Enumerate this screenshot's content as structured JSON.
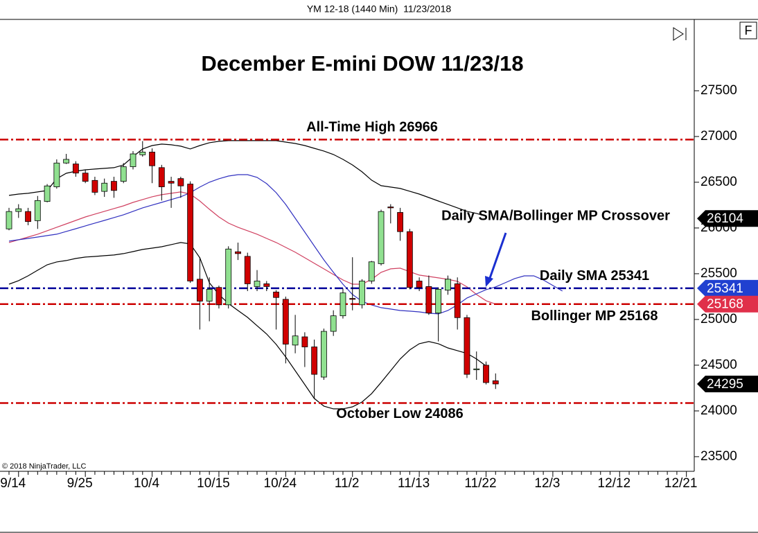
{
  "chart_data": {
    "type": "candlestick",
    "header": "YM 12-18 (1440 Min)  11/23/2018",
    "title": "December E-mini DOW 11/23/18",
    "copyright": "© 2018 NinjaTrader, LLC",
    "button": "F",
    "categories": [
      null,
      "9/14",
      null,
      null,
      null,
      null,
      null,
      null,
      "9/25",
      null,
      null,
      null,
      null,
      null,
      null,
      "10/4",
      null,
      null,
      null,
      null,
      null,
      null,
      "10/15",
      null,
      null,
      null,
      null,
      null,
      null,
      "10/24",
      null,
      null,
      null,
      null,
      null,
      null,
      "11/2",
      null,
      null,
      null,
      null,
      null,
      null,
      "11/13",
      null,
      null,
      null,
      null,
      null,
      null,
      "11/22",
      null,
      null,
      null,
      null,
      null,
      null,
      "12/3",
      null,
      null,
      null,
      null,
      null,
      null,
      "12/12",
      null,
      null,
      null,
      null,
      null,
      null,
      "12/21"
    ],
    "open": [
      25990,
      26180,
      26180,
      26080,
      26290,
      26450,
      26710,
      26700,
      26600,
      26520,
      26400,
      26510,
      26510,
      26670,
      26800,
      26830,
      26660,
      26510,
      26540,
      26480,
      25440,
      25200,
      25350,
      25160,
      25740,
      25690,
      25360,
      25390,
      25300,
      25220,
      24720,
      24810,
      24700,
      24370,
      24870,
      25040,
      25230,
      25160,
      25420,
      25610,
      26230,
      26170,
      25960,
      25420,
      25360,
      25070,
      25320,
      25390,
      25020,
      24450,
      24500,
      24330,
      null,
      null,
      null,
      null,
      null,
      null,
      null,
      null,
      null,
      null,
      null,
      null,
      null,
      null,
      null,
      null,
      null,
      null,
      null,
      null
    ],
    "high": [
      26220,
      26260,
      26220,
      26350,
      26480,
      26750,
      26810,
      26730,
      26640,
      26560,
      26540,
      26560,
      26710,
      26840,
      26950,
      26870,
      26690,
      26560,
      26560,
      26510,
      25680,
      25460,
      25370,
      25800,
      25840,
      25730,
      25540,
      25420,
      25320,
      25250,
      25050,
      24860,
      24780,
      24900,
      25100,
      25340,
      25680,
      25440,
      25640,
      26200,
      26260,
      26220,
      25990,
      25460,
      25480,
      25350,
      25480,
      25460,
      25050,
      24650,
      24540,
      24410,
      null,
      null,
      null,
      null,
      null,
      null,
      null,
      null,
      null,
      null,
      null,
      null,
      null,
      null,
      null,
      null,
      null,
      null,
      null,
      null
    ],
    "low": [
      25975,
      26110,
      26030,
      25990,
      26280,
      26430,
      26700,
      26560,
      26490,
      26360,
      26340,
      26330,
      26490,
      26640,
      26780,
      26490,
      26300,
      26220,
      26330,
      25400,
      24890,
      24980,
      25120,
      25120,
      25650,
      25310,
      25310,
      25310,
      24890,
      24520,
      24630,
      24480,
      24130,
      24340,
      24820,
      25010,
      25100,
      25120,
      25390,
      25590,
      26050,
      25860,
      25330,
      25310,
      25050,
      24760,
      25270,
      24890,
      24360,
      24340,
      24290,
      24240,
      null,
      null,
      null,
      null,
      null,
      null,
      null,
      null,
      null,
      null,
      null,
      null,
      null,
      null,
      null,
      null,
      null,
      null,
      null,
      null
    ],
    "close": [
      26180,
      26210,
      26070,
      26300,
      26460,
      26710,
      26750,
      26600,
      26510,
      26390,
      26490,
      26410,
      26670,
      26810,
      26830,
      26680,
      26450,
      26490,
      26460,
      25420,
      25200,
      25330,
      25160,
      25770,
      25720,
      25390,
      25420,
      25360,
      25240,
      24730,
      24820,
      24700,
      24400,
      24870,
      25040,
      25290,
      25220,
      25420,
      25630,
      26180,
      26220,
      25960,
      25350,
      25350,
      25070,
      25330,
      25440,
      25020,
      24400,
      24460,
      24310,
      24295,
      null,
      null,
      null,
      null,
      null,
      null,
      null,
      null,
      null,
      null,
      null,
      null,
      null,
      null,
      null,
      null,
      null,
      null,
      null,
      null
    ],
    "up_color": "#90e090",
    "down_color": "#d00000",
    "overlays": [
      {
        "color": "#000000",
        "values": [
          26356,
          26371,
          26379,
          26394,
          26409,
          26538,
          26598,
          26621,
          26636,
          26644,
          26652,
          26659,
          26689,
          26780,
          26864,
          26901,
          26917,
          26909,
          26894,
          26864,
          26901,
          26932,
          26947,
          26955,
          26955,
          26955,
          26955,
          26955,
          26955,
          26939,
          26924,
          26901,
          26871,
          26841,
          26803,
          26750,
          26689,
          26614,
          26523,
          26462,
          26447,
          26432,
          26402,
          26371,
          26333,
          26295,
          26258,
          26220,
          26182,
          26159,
          26129,
          null,
          null,
          null,
          null,
          null,
          null,
          null,
          null,
          null,
          null,
          null,
          null,
          null,
          null,
          null,
          null,
          null,
          null,
          null,
          null,
          null
        ]
      },
      {
        "color": "#000000",
        "values": [
          25386,
          25424,
          25477,
          25538,
          25598,
          25629,
          25644,
          25667,
          25682,
          25689,
          25697,
          25705,
          25720,
          25742,
          25765,
          25780,
          25795,
          25818,
          25841,
          25826,
          25674,
          25401,
          25273,
          25174,
          25098,
          25023,
          24932,
          24841,
          24727,
          24591,
          24439,
          24288,
          24136,
          24053,
          24023,
          24023,
          24045,
          24098,
          24189,
          24311,
          24439,
          24568,
          24667,
          24735,
          24758,
          24735,
          24689,
          24659,
          24629,
          24568,
          24492,
          null,
          null,
          null,
          null,
          null,
          null,
          null,
          null,
          null,
          null,
          null,
          null,
          null,
          null,
          null,
          null,
          null,
          null,
          null,
          null,
          null
        ]
      },
      {
        "color": "#d04060",
        "values": [
          25841,
          25871,
          25901,
          25932,
          25970,
          26008,
          26045,
          26083,
          26121,
          26152,
          26182,
          26212,
          26242,
          26280,
          26311,
          26341,
          26364,
          26379,
          26394,
          26371,
          26295,
          26205,
          26121,
          26053,
          26008,
          25970,
          25932,
          25886,
          25841,
          25788,
          25735,
          25674,
          25614,
          25553,
          25492,
          25432,
          25386,
          25386,
          25439,
          25515,
          25553,
          25561,
          25523,
          25485,
          25470,
          25455,
          25439,
          25417,
          25356,
          25273,
          25205,
          25168,
          null,
          null,
          null,
          null,
          null,
          null,
          null,
          null,
          null,
          null,
          null,
          null,
          null,
          null,
          null,
          null,
          null,
          null,
          null,
          null
        ]
      },
      {
        "color": "#3030c0",
        "values": [
          25856,
          25871,
          25886,
          25901,
          25917,
          25932,
          25962,
          25992,
          26023,
          26053,
          26083,
          26114,
          26144,
          26182,
          26220,
          26250,
          26280,
          26311,
          26341,
          26386,
          26447,
          26500,
          26538,
          26568,
          26583,
          26583,
          26553,
          26485,
          26386,
          26258,
          26106,
          25955,
          25803,
          25652,
          25515,
          25386,
          25273,
          25197,
          25159,
          25129,
          25114,
          25098,
          25091,
          25083,
          25068,
          25061,
          25098,
          25159,
          25235,
          25280,
          25326,
          25356,
          25401,
          25447,
          25477,
          25477,
          25432,
          25371,
          25311,
          null,
          null,
          null,
          null,
          null,
          null,
          null,
          null,
          null,
          null,
          null,
          null,
          null
        ]
      }
    ],
    "levels": [
      {
        "label": "All-Time High 26966",
        "value": 26966,
        "color": "#cc0000"
      },
      {
        "label": "Daily SMA 25341",
        "value": 25341,
        "color": "#000099"
      },
      {
        "label": "Bollinger MP 25168",
        "value": 25168,
        "color": "#cc0000"
      },
      {
        "label": "October Low 24086",
        "value": 24086,
        "color": "#cc0000"
      }
    ],
    "annotation": "Daily SMA/Bollinger MP Crossover",
    "price_markers": [
      {
        "value": 26104,
        "color": "#000000"
      },
      {
        "value": 25341,
        "color": "#2040d0"
      },
      {
        "value": 25168,
        "color": "#e0304a"
      },
      {
        "value": 24295,
        "color": "#000000"
      }
    ],
    "ylim": [
      23340,
      28280
    ],
    "yticks": [
      23500,
      24000,
      24500,
      25000,
      25500,
      26000,
      26500,
      27000,
      27500
    ]
  }
}
